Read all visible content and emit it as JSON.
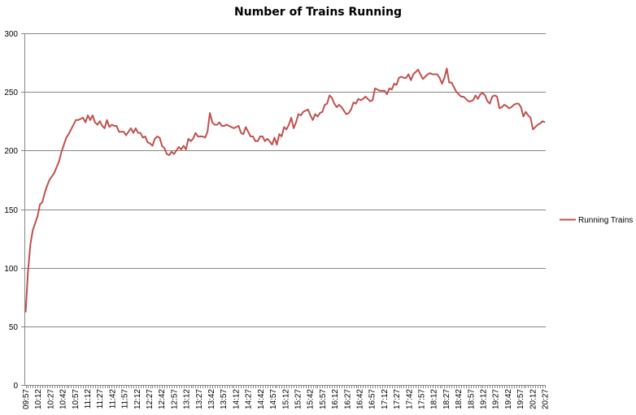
{
  "chart_data": {
    "type": "line",
    "title": "Number of Trains Running",
    "xlabel": "",
    "ylabel": "",
    "ylim": [
      0,
      300
    ],
    "yticks": [
      0,
      50,
      100,
      150,
      200,
      250,
      300
    ],
    "grid": true,
    "legend_position": "right",
    "x_tick_labels": [
      "09:57",
      "10:12",
      "10:27",
      "10:42",
      "10:57",
      "11:12",
      "11:27",
      "11:42",
      "11:57",
      "12:12",
      "12:27",
      "12:42",
      "12:57",
      "13:12",
      "13:27",
      "13:42",
      "13:57",
      "14:12",
      "14:27",
      "14:42",
      "14:57",
      "15:12",
      "15:27",
      "15:42",
      "15:57",
      "16:12",
      "16:27",
      "16:42",
      "16:57",
      "17:12",
      "17:27",
      "17:42",
      "17:57",
      "18:12",
      "18:27",
      "18:42",
      "18:57",
      "19:12",
      "19:27",
      "19:42",
      "19:57",
      "20:12",
      "20:27"
    ],
    "series": [
      {
        "name": "Running Trains",
        "color": "#c0504d",
        "values": [
          62,
          97,
          120,
          132,
          138,
          144,
          154,
          156,
          164,
          170,
          175,
          178,
          181,
          186,
          191,
          199,
          205,
          211,
          214,
          218,
          222,
          226,
          226,
          227,
          228,
          224,
          230,
          226,
          230,
          224,
          222,
          225,
          221,
          219,
          226,
          220,
          222,
          221,
          221,
          216,
          216,
          216,
          213,
          216,
          219,
          215,
          219,
          215,
          215,
          211,
          212,
          207,
          206,
          204,
          210,
          212,
          211,
          204,
          202,
          197,
          196,
          199,
          197,
          200,
          203,
          201,
          204,
          201,
          210,
          208,
          210,
          215,
          212,
          212,
          212,
          211,
          216,
          232,
          224,
          222,
          222,
          224,
          221,
          221,
          222,
          221,
          220,
          219,
          220,
          221,
          215,
          214,
          220,
          216,
          212,
          212,
          208,
          208,
          212,
          212,
          208,
          210,
          208,
          205,
          211,
          205,
          214,
          212,
          220,
          218,
          222,
          228,
          219,
          224,
          231,
          230,
          233,
          234,
          235,
          230,
          226,
          231,
          229,
          232,
          233,
          239,
          240,
          247,
          245,
          240,
          237,
          239,
          237,
          234,
          231,
          232,
          235,
          241,
          240,
          244,
          243,
          244,
          246,
          244,
          242,
          243,
          253,
          252,
          251,
          251,
          251,
          248,
          253,
          252,
          257,
          256,
          262,
          263,
          262,
          262,
          265,
          260,
          265,
          267,
          269,
          265,
          261,
          263,
          265,
          266,
          265,
          265,
          265,
          262,
          257,
          262,
          270,
          258,
          258,
          254,
          250,
          248,
          246,
          246,
          244,
          242,
          242,
          243,
          247,
          244,
          248,
          249,
          247,
          242,
          240,
          246,
          247,
          246,
          236,
          237,
          239,
          238,
          236,
          237,
          239,
          240,
          240,
          237,
          229,
          233,
          230,
          228,
          218,
          220,
          222,
          223,
          225,
          224
        ]
      }
    ]
  }
}
